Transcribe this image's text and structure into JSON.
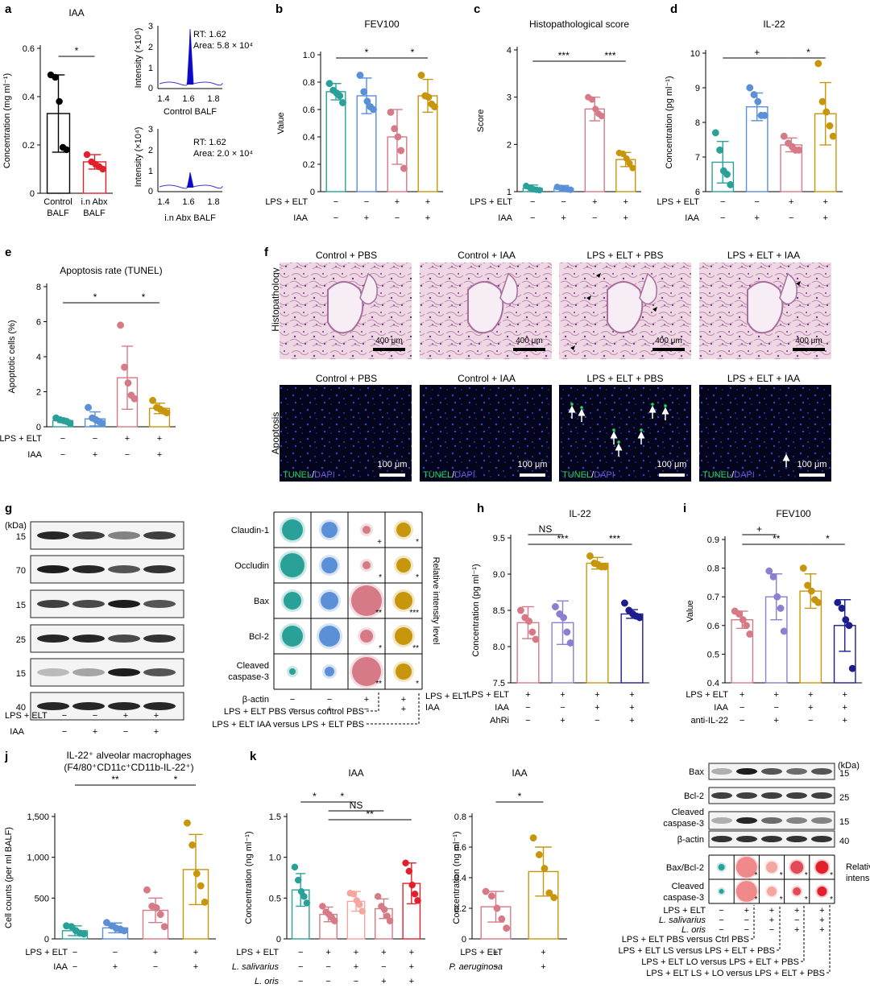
{
  "colors": {
    "teal": "#2aa198",
    "blue": "#5b8fd6",
    "pink": "#d57a86",
    "gold": "#c8960c",
    "lav": "#8a7fd0",
    "navy": "#1c1c8c",
    "red": "#e0212c",
    "light_pink": "#f08a8a",
    "peach": "#f4a6a0",
    "hist_bg": "#e7c6d7",
    "fluor_bg": "#050520",
    "tunel_green": "#22dd55",
    "dapi_blue": "#2b4bd6"
  },
  "panels": {
    "a": "a",
    "b": "b",
    "c": "c",
    "d": "d",
    "e": "e",
    "f": "f",
    "g": "g",
    "h": "h",
    "i": "i",
    "j": "j",
    "k": "k"
  },
  "common": {
    "lps_elt": "LPS + ELT",
    "iaa": "IAA",
    "minus": "−",
    "plus": "+"
  },
  "a": {
    "title": "IAA",
    "ylabel": "Concentration (mg ml⁻¹)",
    "yticks": [
      "0",
      "0.2",
      "0.4",
      "0.6"
    ],
    "x1": "Control",
    "x1b": "BALF",
    "x2": "i.n Abx",
    "x2b": "BALF",
    "sig": "*",
    "chrom1": {
      "rt": "RT: 1.62",
      "area": "Area: 5.8 × 10⁴",
      "xlabel": "Control BALF",
      "ylabel": "Intensity (×10⁴)",
      "yticks": [
        "0",
        "1",
        "2",
        "3"
      ],
      "xticks": [
        "1.4",
        "1.6",
        "1.8"
      ]
    },
    "chrom2": {
      "rt": "RT: 1.62",
      "area": "Area: 2.0 × 10⁴",
      "xlabel": "i.n Abx BALF",
      "ylabel": "Intensity (×10⁴)",
      "yticks": [
        "0",
        "1",
        "2",
        "3"
      ],
      "xticks": [
        "1.4",
        "1.6",
        "1.8"
      ]
    }
  },
  "b": {
    "title": "FEV100",
    "ylabel": "Value",
    "yticks": [
      "0",
      "0.2",
      "0.4",
      "0.6",
      "0.8",
      "1.0"
    ],
    "sig1": "*",
    "sig2": "*"
  },
  "c": {
    "title": "Histopathological score",
    "ylabel": "Score",
    "yticks": [
      "1",
      "2",
      "3",
      "4"
    ],
    "sig1": "***",
    "sig2": "***"
  },
  "d": {
    "title": "IL-22",
    "ylabel": "Concentration (pg ml⁻¹)",
    "yticks": [
      "6",
      "7",
      "8",
      "9",
      "10"
    ],
    "sig1": "+",
    "sig2": "*"
  },
  "e": {
    "title": "Apoptosis rate (TUNEL)",
    "ylabel": "Apoptotic cells (%)",
    "yticks": [
      "0",
      "2",
      "4",
      "6",
      "8"
    ],
    "sig1": "*",
    "sig2": "*"
  },
  "f": {
    "cols": [
      "Control + PBS",
      "Control + IAA",
      "LPS + ELT + PBS",
      "LPS + ELT + IAA"
    ],
    "row1": "Histopathology",
    "row2": "Apoptosis",
    "scale1": "400 μm",
    "scale2": "100 μm",
    "tunel": "TUNEL",
    "slash": "/",
    "dapi": "DAPI"
  },
  "g": {
    "kda": "(kDa)",
    "mw": [
      "15",
      "70",
      "15",
      "25",
      "15",
      "40"
    ],
    "proteins": [
      "Claudin-1",
      "Occludin",
      "Bax",
      "Bcl-2",
      "Cleaved",
      "caspase-3",
      "β-actin"
    ],
    "side": "Relative intensity level",
    "legend1": "LPS + ELT PBS versus control PBS",
    "legend2": "LPS + ELT IAA versus LPS + ELT PBS",
    "stars": [
      "+",
      "*",
      "*",
      "*",
      "**",
      "***",
      "*",
      "**",
      "**",
      "*"
    ]
  },
  "h": {
    "title": "IL-22",
    "ylabel": "Concentration (pg ml⁻¹)",
    "yticks": [
      "7.5",
      "8.0",
      "8.5",
      "9.0",
      "9.5"
    ],
    "ns": "NS",
    "sig1": "***",
    "sig2": "***",
    "ahri": "AhRi"
  },
  "i": {
    "title": "FEV100",
    "ylabel": "Value",
    "yticks": [
      "0.4",
      "0.5",
      "0.6",
      "0.7",
      "0.8",
      "0.9"
    ],
    "sig1": "+",
    "sig2": "**",
    "sig3": "*",
    "anti": "anti-IL-22"
  },
  "j": {
    "title1": "IL-22⁺ alveolar macrophages",
    "title2": "(F4/80⁺CD11c⁺CD11b-IL-22⁺)",
    "ylabel": "Cell counts (per ml BALF)",
    "yticks": [
      "0",
      "500",
      "1,000",
      "1,500"
    ],
    "sig1": "**",
    "sig2": "*"
  },
  "k": {
    "title": "IAA",
    "ylabel": "Concentration (ng ml⁻¹)",
    "yticks": [
      "0",
      "0.5",
      "1.0",
      "1.5"
    ],
    "sig": [
      "*",
      "*",
      "NS",
      "**"
    ],
    "ls": "L. salivarius",
    "lo": "L. oris",
    "title2": "IAA",
    "ylabel2": "Concentration (ng ml⁻¹)",
    "yticks2": [
      "0",
      "0.2",
      "0.4",
      "0.6",
      "0.8"
    ],
    "sig2": "*",
    "pa": "P. aeruginosa",
    "wb": [
      "Bax",
      "Bcl-2",
      "Cleaved",
      "caspase-3",
      "β-actin"
    ],
    "kda": "(kDa)",
    "mw": [
      "15",
      "25",
      "15",
      "40"
    ],
    "ratio1": "Bax/Bcl-2",
    "ratio2a": "Cleaved",
    "ratio2b": "caspase-3",
    "side1": "Relative",
    "side2": "intensity",
    "legend": [
      "LPS + ELT PBS versus Ctrl PBS",
      "LPS + ELT LS versus LPS + ELT + PBS",
      "LPS + ELT LO versus LPS + ELT + PBS",
      "LPS + ELT LS + LO versus LPS + ELT + PBS"
    ]
  },
  "chart_data": [
    {
      "id": "a",
      "type": "bar",
      "title": "IAA",
      "ylabel": "Concentration (mg ml⁻¹)",
      "ylim": [
        0,
        0.6
      ],
      "categories": [
        "Control BALF",
        "i.n Abx BALF"
      ],
      "values": [
        0.33,
        0.13
      ],
      "errors": [
        0.16,
        0.03
      ],
      "points": [
        [
          0.49,
          0.48,
          0.38,
          0.19,
          0.18
        ],
        [
          0.16,
          0.13,
          0.12,
          0.11,
          0.1
        ]
      ]
    },
    {
      "id": "b",
      "type": "bar",
      "title": "FEV100",
      "ylabel": "Value",
      "ylim": [
        0,
        1.0
      ],
      "categories": [
        "LPS−IAA−",
        "LPS−IAA+",
        "LPS+IAA−",
        "LPS+IAA+"
      ],
      "values": [
        0.73,
        0.7,
        0.4,
        0.7
      ],
      "errors": [
        0.06,
        0.13,
        0.2,
        0.12
      ],
      "points": [
        [
          0.79,
          0.74,
          0.72,
          0.7,
          0.65
        ],
        [
          0.85,
          0.73,
          0.66,
          0.62,
          0.6
        ],
        [
          0.58,
          0.46,
          0.4,
          0.3,
          0.17
        ],
        [
          0.85,
          0.7,
          0.69,
          0.64,
          0.62
        ]
      ]
    },
    {
      "id": "c",
      "type": "bar",
      "title": "Histopathological score",
      "ylabel": "Score",
      "ylim": [
        1,
        4
      ],
      "categories": [
        "LPS−IAA−",
        "LPS−IAA+",
        "LPS+IAA−",
        "LPS+IAA+"
      ],
      "values": [
        1.07,
        1.07,
        2.75,
        1.68
      ],
      "errors": [
        0.07,
        0.06,
        0.25,
        0.15
      ],
      "points": [
        [
          1.12,
          1.08,
          1.05,
          1.04,
          1.03
        ],
        [
          1.1,
          1.08,
          1.06,
          1.05,
          1.04
        ],
        [
          3.0,
          2.95,
          2.75,
          2.65,
          2.6
        ],
        [
          1.82,
          1.8,
          1.7,
          1.6,
          1.5
        ]
      ]
    },
    {
      "id": "d",
      "type": "bar",
      "title": "IL-22",
      "ylabel": "Concentration (pg ml⁻¹)",
      "ylim": [
        6,
        10
      ],
      "categories": [
        "LPS−IAA−",
        "LPS−IAA+",
        "LPS+IAA−",
        "LPS+IAA+"
      ],
      "values": [
        6.85,
        8.45,
        7.35,
        8.25
      ],
      "errors": [
        0.6,
        0.4,
        0.2,
        0.9
      ],
      "points": [
        [
          7.7,
          7.2,
          6.6,
          6.5,
          6.2
        ],
        [
          9.0,
          8.8,
          8.6,
          8.2,
          8.2
        ],
        [
          7.6,
          7.4,
          7.3,
          7.2,
          7.2
        ],
        [
          9.7,
          8.6,
          8.3,
          7.9,
          7.6
        ]
      ]
    },
    {
      "id": "e",
      "type": "bar",
      "title": "Apoptosis rate (TUNEL)",
      "ylabel": "Apoptotic cells (%)",
      "ylim": [
        0,
        8
      ],
      "categories": [
        "LPS−IAA−",
        "LPS−IAA+",
        "LPS+IAA−",
        "LPS+IAA+"
      ],
      "values": [
        0.35,
        0.45,
        2.8,
        1.05
      ],
      "errors": [
        0.1,
        0.4,
        1.8,
        0.3
      ],
      "points": [
        [
          0.5,
          0.4,
          0.35,
          0.3,
          0.2
        ],
        [
          1.1,
          0.5,
          0.4,
          0.3,
          0.2
        ],
        [
          5.8,
          3.4,
          2.5,
          1.8,
          1.6
        ],
        [
          1.5,
          1.1,
          1.0,
          0.9,
          0.8
        ]
      ]
    },
    {
      "id": "h",
      "type": "bar",
      "title": "IL-22",
      "ylabel": "Concentration (pg ml⁻¹)",
      "ylim": [
        7.5,
        9.5
      ],
      "categories": [
        "IAA−AhRi−",
        "IAA−AhRi+",
        "IAA+AhRi−",
        "IAA+AhRi+"
      ],
      "values": [
        8.33,
        8.33,
        9.15,
        8.45
      ],
      "errors": [
        0.22,
        0.3,
        0.08,
        0.06
      ],
      "points": [
        [
          8.5,
          8.4,
          8.35,
          8.2,
          8.1
        ],
        [
          8.55,
          8.45,
          8.4,
          8.2,
          8.05
        ],
        [
          9.25,
          9.15,
          9.13,
          9.1,
          9.1
        ],
        [
          8.6,
          8.5,
          8.45,
          8.42,
          8.4
        ]
      ]
    },
    {
      "id": "i",
      "type": "bar",
      "title": "FEV100",
      "ylabel": "Value",
      "ylim": [
        0.4,
        0.9
      ],
      "categories": [
        "IAA−anti−",
        "IAA−anti+",
        "IAA+anti−",
        "IAA+anti+"
      ],
      "values": [
        0.62,
        0.7,
        0.72,
        0.6
      ],
      "errors": [
        0.03,
        0.08,
        0.06,
        0.09
      ],
      "points": [
        [
          0.65,
          0.64,
          0.62,
          0.6,
          0.57
        ],
        [
          0.79,
          0.77,
          0.7,
          0.66,
          0.58
        ],
        [
          0.8,
          0.74,
          0.72,
          0.69,
          0.68
        ],
        [
          0.68,
          0.66,
          0.62,
          0.6,
          0.45
        ]
      ]
    },
    {
      "id": "j",
      "type": "bar",
      "title": "IL-22⁺ alveolar macrophages",
      "ylabel": "Cell counts (per ml BALF)",
      "ylim": [
        0,
        1500
      ],
      "categories": [
        "LPS−IAA−",
        "LPS−IAA+",
        "LPS+IAA−",
        "LPS+IAA+"
      ],
      "values": [
        100,
        135,
        350,
        850
      ],
      "errors": [
        60,
        60,
        150,
        430
      ],
      "points": [
        [
          160,
          150,
          100,
          70,
          60
        ],
        [
          200,
          160,
          130,
          120,
          100
        ],
        [
          600,
          400,
          380,
          300,
          150
        ],
        [
          1420,
          1150,
          800,
          650,
          450
        ]
      ]
    },
    {
      "id": "k1",
      "type": "bar",
      "title": "IAA",
      "ylabel": "Concentration (ng ml⁻¹)",
      "ylim": [
        0,
        1.5
      ],
      "categories": [
        "LPS−",
        "LPS+",
        "LPS+LS",
        "LPS+LO",
        "LPS+LS+LO"
      ],
      "values": [
        0.6,
        0.3,
        0.46,
        0.37,
        0.68
      ],
      "errors": [
        0.2,
        0.09,
        0.12,
        0.12,
        0.25
      ],
      "points": [
        [
          0.88,
          0.72,
          0.58,
          0.52,
          0.44
        ],
        [
          0.4,
          0.33,
          0.3,
          0.26,
          0.22
        ],
        [
          0.56,
          0.55,
          0.47,
          0.42,
          0.34
        ],
        [
          0.52,
          0.4,
          0.36,
          0.28,
          0.22
        ],
        [
          0.93,
          0.83,
          0.66,
          0.55,
          0.47
        ]
      ]
    },
    {
      "id": "k2",
      "type": "bar",
      "title": "IAA",
      "ylabel": "Concentration (ng ml⁻¹)",
      "ylim": [
        0,
        0.8
      ],
      "categories": [
        "P. aeruginosa−",
        "P. aeruginosa+"
      ],
      "values": [
        0.21,
        0.44
      ],
      "errors": [
        0.1,
        0.16
      ],
      "points": [
        [
          0.31,
          0.28,
          0.2,
          0.13,
          0.07
        ],
        [
          0.66,
          0.55,
          0.46,
          0.3,
          0.27
        ]
      ]
    }
  ]
}
